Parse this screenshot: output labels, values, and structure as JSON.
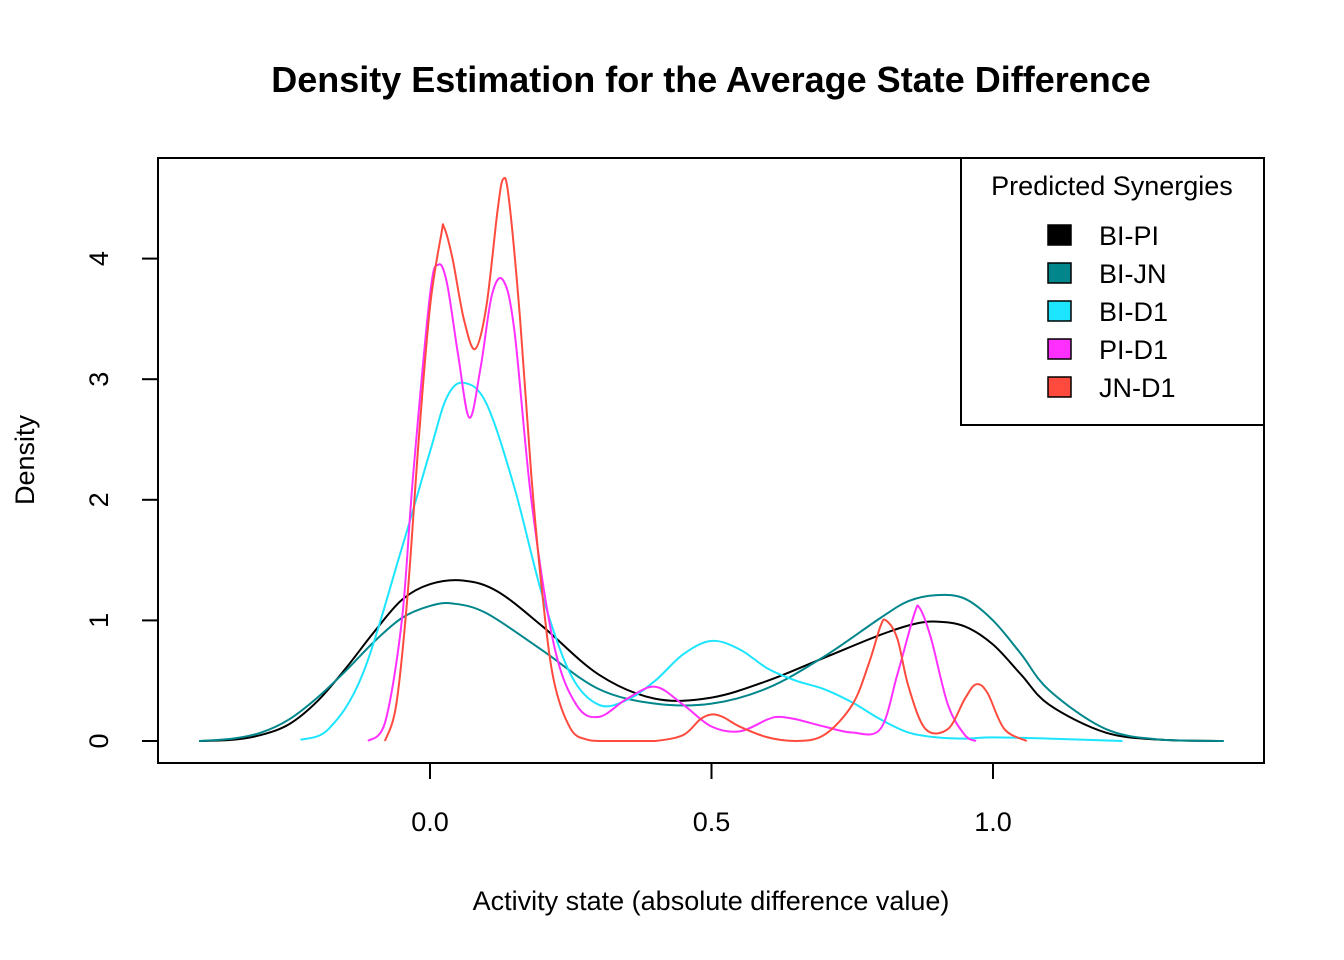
{
  "chart_data": {
    "type": "line",
    "title": "Density Estimation for the Average State Difference",
    "xlabel": "Activity state (absolute difference value)",
    "ylabel": "Density",
    "xlim": [
      -0.42,
      1.44
    ],
    "ylim": [
      0,
      4.8
    ],
    "x_ticks": [
      "0.0",
      "0.5",
      "1.0"
    ],
    "x_tick_values": [
      0.0,
      0.5,
      1.0
    ],
    "y_ticks": [
      "0",
      "1",
      "2",
      "3",
      "4"
    ],
    "y_tick_values": [
      0,
      1,
      2,
      3,
      4
    ],
    "grid": false,
    "legend": {
      "title": "Predicted Synergies",
      "placement": "top-right"
    },
    "series": [
      {
        "name": "BI-PI",
        "color": "#000000",
        "x": [
          -0.41,
          -0.35,
          -0.3,
          -0.25,
          -0.2,
          -0.15,
          -0.1,
          -0.05,
          0.0,
          0.06,
          0.12,
          0.2,
          0.3,
          0.4,
          0.5,
          0.6,
          0.7,
          0.8,
          0.86,
          0.9,
          0.95,
          1.0,
          1.05,
          1.1,
          1.2,
          1.3,
          1.4
        ],
        "y": [
          0.0,
          0.01,
          0.05,
          0.14,
          0.33,
          0.6,
          0.9,
          1.17,
          1.3,
          1.33,
          1.24,
          0.95,
          0.55,
          0.35,
          0.36,
          0.5,
          0.69,
          0.88,
          0.97,
          0.99,
          0.95,
          0.8,
          0.55,
          0.3,
          0.07,
          0.01,
          0.0
        ]
      },
      {
        "name": "BI-JN",
        "color": "#00868B",
        "x": [
          -0.41,
          -0.35,
          -0.3,
          -0.25,
          -0.2,
          -0.15,
          -0.1,
          -0.05,
          0.0,
          0.04,
          0.1,
          0.2,
          0.3,
          0.4,
          0.5,
          0.6,
          0.7,
          0.8,
          0.85,
          0.9,
          0.95,
          1.0,
          1.05,
          1.1,
          1.2,
          1.3,
          1.41
        ],
        "y": [
          0.0,
          0.02,
          0.07,
          0.18,
          0.36,
          0.58,
          0.82,
          1.02,
          1.12,
          1.14,
          1.06,
          0.75,
          0.43,
          0.31,
          0.31,
          0.44,
          0.7,
          1.02,
          1.16,
          1.21,
          1.18,
          1.0,
          0.72,
          0.42,
          0.1,
          0.01,
          0.0
        ]
      },
      {
        "name": "BI-D1",
        "color": "#1DE5FF",
        "x": [
          -0.23,
          -0.18,
          -0.12,
          -0.05,
          0.0,
          0.03,
          0.06,
          0.1,
          0.15,
          0.2,
          0.25,
          0.3,
          0.35,
          0.4,
          0.45,
          0.5,
          0.55,
          0.6,
          0.65,
          0.7,
          0.75,
          0.8,
          0.85,
          0.9,
          0.95,
          1.0,
          1.1,
          1.23
        ],
        "y": [
          0.01,
          0.1,
          0.55,
          1.6,
          2.4,
          2.85,
          2.97,
          2.8,
          2.1,
          1.2,
          0.55,
          0.3,
          0.34,
          0.5,
          0.72,
          0.83,
          0.76,
          0.6,
          0.5,
          0.43,
          0.32,
          0.18,
          0.07,
          0.03,
          0.02,
          0.03,
          0.02,
          0.0
        ]
      },
      {
        "name": "PI-D1",
        "color": "#FF30FF",
        "x": [
          -0.11,
          -0.08,
          -0.05,
          -0.03,
          0.0,
          0.015,
          0.03,
          0.05,
          0.07,
          0.09,
          0.11,
          0.13,
          0.15,
          0.18,
          0.22,
          0.26,
          0.3,
          0.35,
          0.4,
          0.45,
          0.5,
          0.55,
          0.6,
          0.62,
          0.65,
          0.7,
          0.75,
          0.8,
          0.83,
          0.86,
          0.87,
          0.89,
          0.92,
          0.95,
          0.97
        ],
        "y": [
          0.0,
          0.15,
          1.0,
          2.2,
          3.7,
          3.95,
          3.8,
          3.2,
          2.68,
          3.1,
          3.7,
          3.82,
          3.4,
          2.0,
          0.8,
          0.3,
          0.2,
          0.35,
          0.45,
          0.3,
          0.12,
          0.08,
          0.18,
          0.2,
          0.18,
          0.12,
          0.07,
          0.1,
          0.55,
          1.05,
          1.1,
          0.85,
          0.3,
          0.05,
          0.0
        ]
      },
      {
        "name": "JN-D1",
        "color": "#FF4B3E",
        "x": [
          -0.08,
          -0.06,
          -0.04,
          -0.02,
          0.0,
          0.02,
          0.025,
          0.04,
          0.06,
          0.08,
          0.1,
          0.12,
          0.13,
          0.14,
          0.16,
          0.18,
          0.2,
          0.22,
          0.25,
          0.28,
          0.3,
          0.35,
          0.4,
          0.45,
          0.48,
          0.5,
          0.52,
          0.55,
          0.6,
          0.65,
          0.7,
          0.75,
          0.78,
          0.8,
          0.81,
          0.83,
          0.85,
          0.88,
          0.92,
          0.95,
          0.97,
          0.99,
          1.02,
          1.06
        ],
        "y": [
          0.0,
          0.3,
          1.2,
          2.5,
          3.6,
          4.2,
          4.26,
          4.0,
          3.5,
          3.25,
          3.6,
          4.4,
          4.66,
          4.5,
          3.5,
          2.2,
          1.2,
          0.5,
          0.1,
          0.01,
          0.0,
          0.0,
          0.0,
          0.05,
          0.18,
          0.22,
          0.2,
          0.12,
          0.03,
          0.0,
          0.05,
          0.3,
          0.65,
          0.95,
          1.0,
          0.85,
          0.45,
          0.1,
          0.1,
          0.35,
          0.47,
          0.4,
          0.1,
          0.0
        ]
      }
    ]
  }
}
